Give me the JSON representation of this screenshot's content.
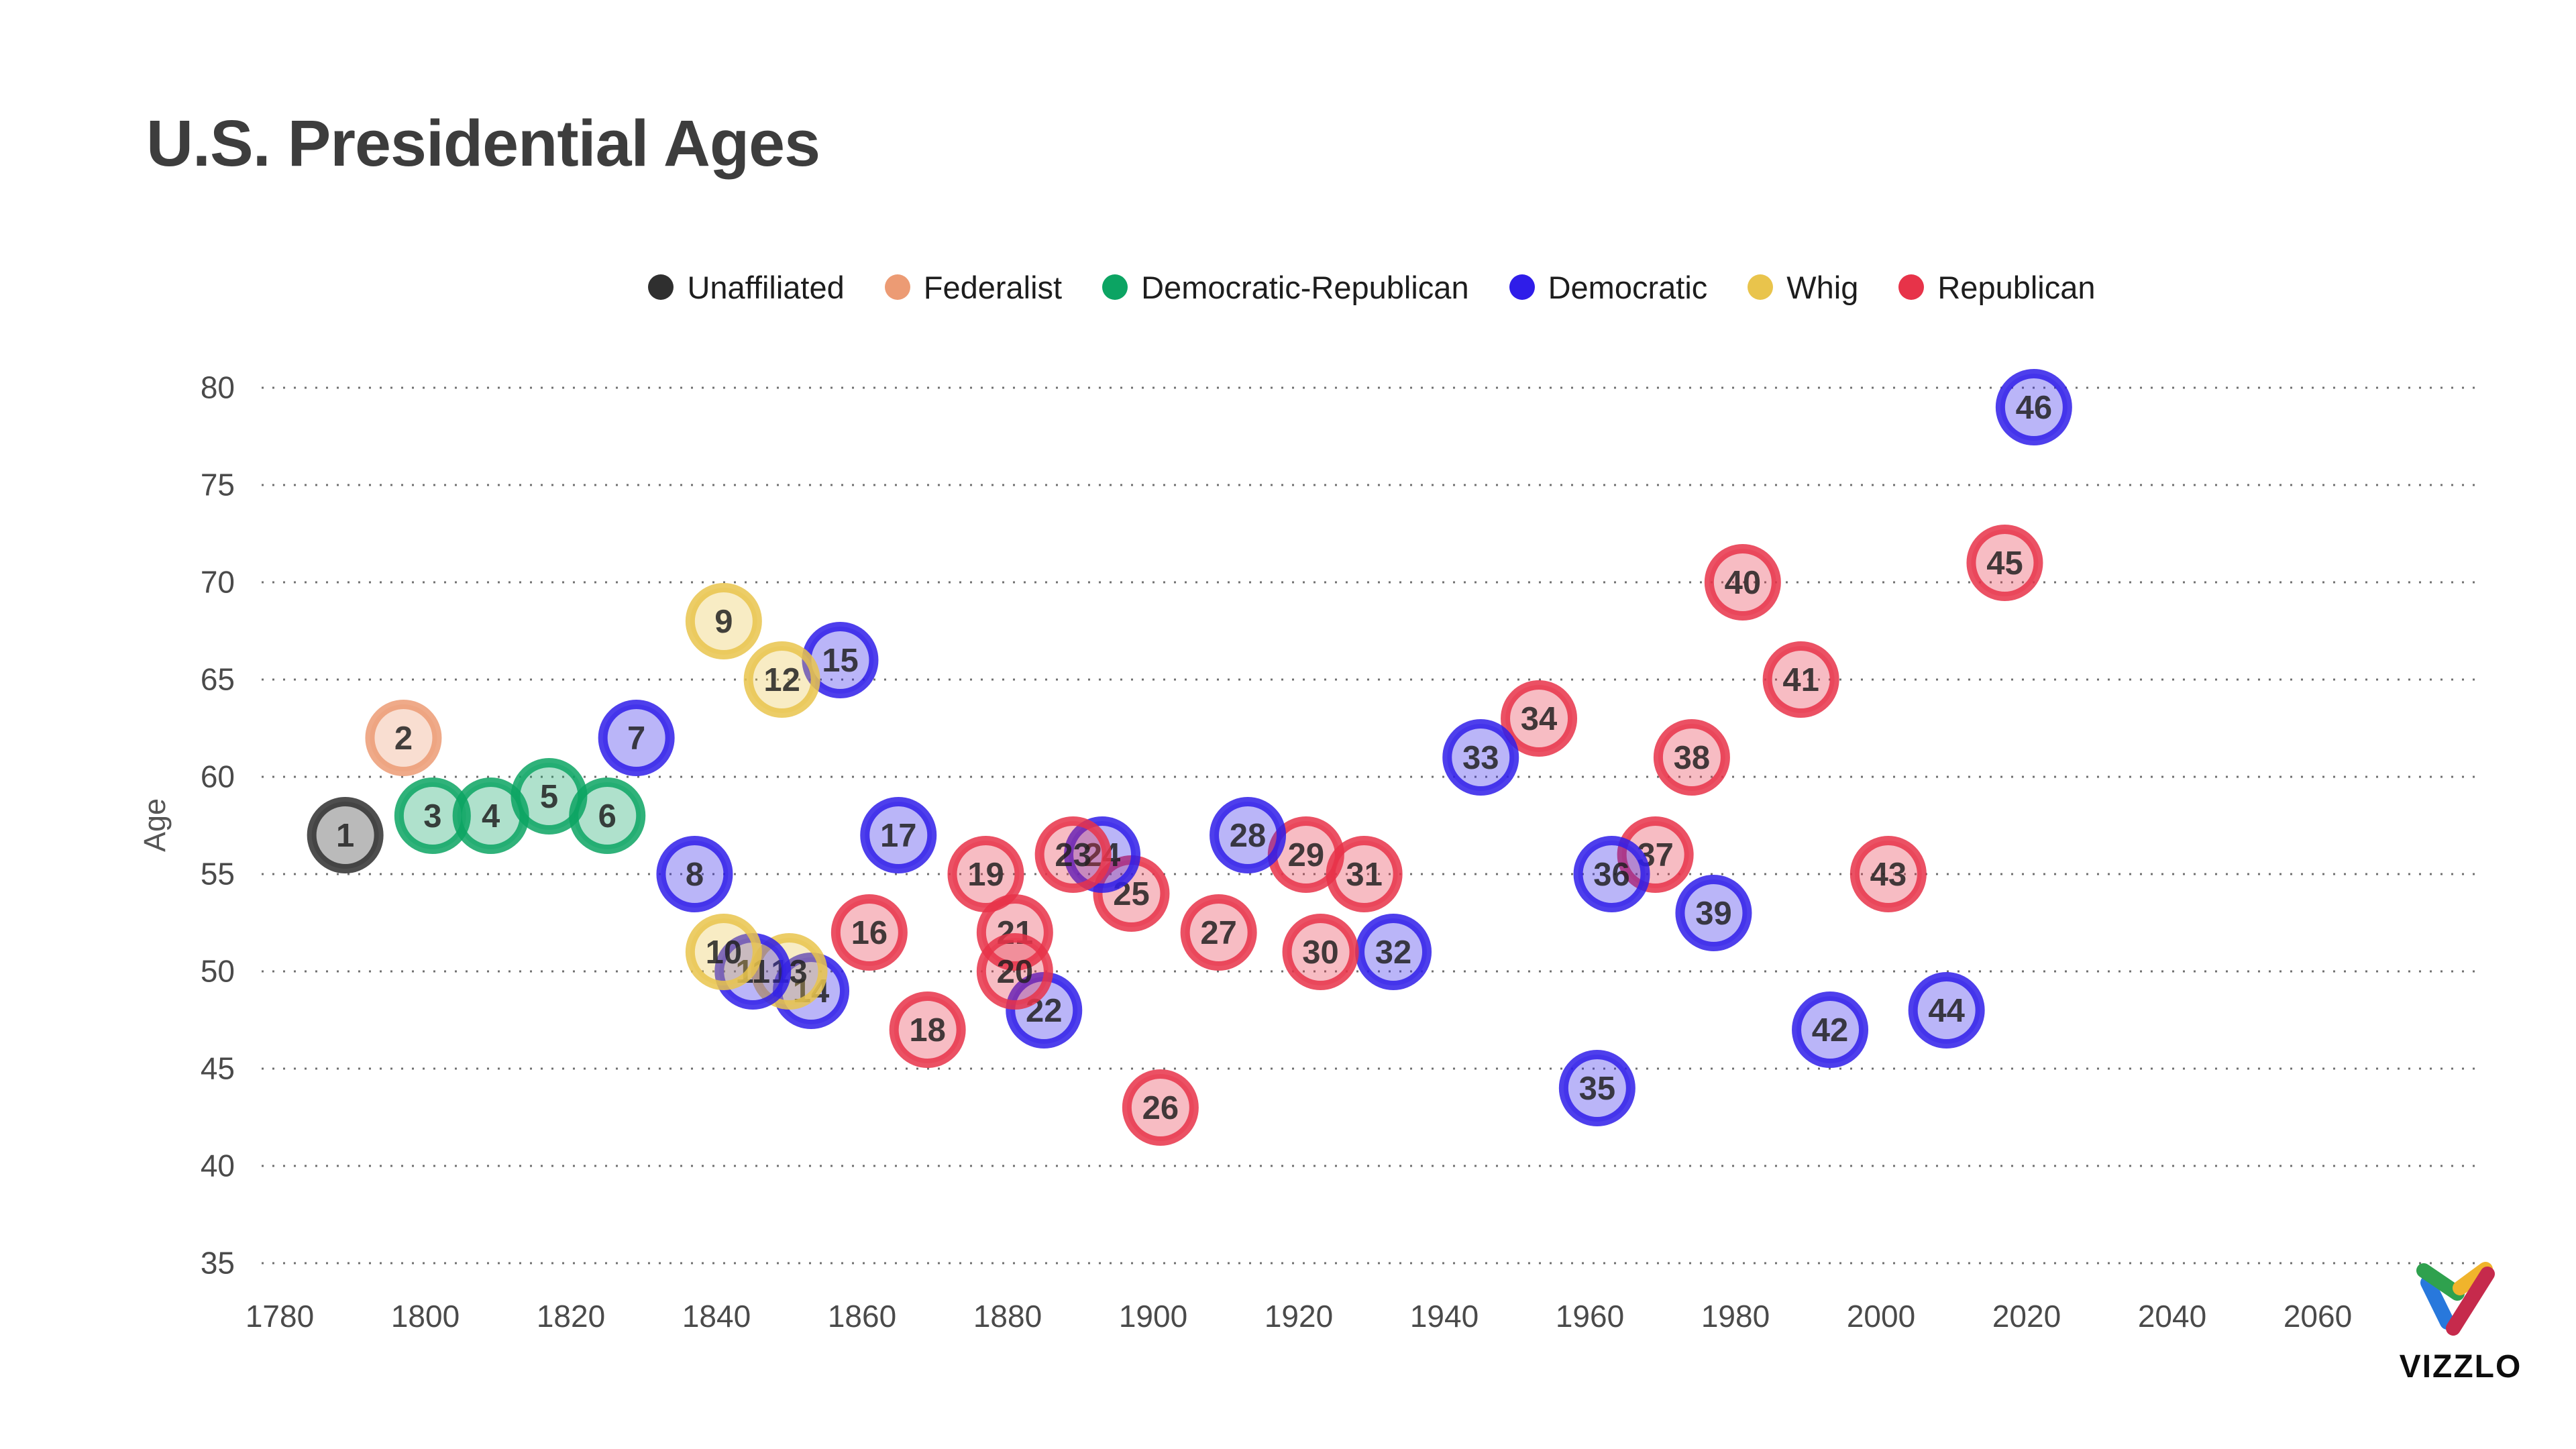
{
  "title": "U.S. Presidential Ages",
  "axes": {
    "y_title": "Age"
  },
  "legend": {
    "items": [
      {
        "label": "Unaffiliated",
        "party": "unaffiliated",
        "color": "#2f2f2f"
      },
      {
        "label": "Federalist",
        "party": "federalist",
        "color": "#ec9b74"
      },
      {
        "label": "Democratic-Republican",
        "party": "democratic-republican",
        "color": "#0ca463"
      },
      {
        "label": "Democratic",
        "party": "democratic",
        "color": "#2f1de9"
      },
      {
        "label": "Whig",
        "party": "whig",
        "color": "#e9c44c"
      },
      {
        "label": "Republican",
        "party": "republican",
        "color": "#e73349"
      }
    ]
  },
  "chart_data": {
    "type": "scatter",
    "title": "U.S. Presidential Ages",
    "xlabel": "",
    "ylabel": "Age",
    "xlim": [
      1777,
      2083
    ],
    "ylim": [
      35,
      80
    ],
    "x_ticks": [
      1780,
      1800,
      1820,
      1840,
      1860,
      1880,
      1900,
      1920,
      1940,
      1960,
      1980,
      2000,
      2020,
      2040,
      2060
    ],
    "y_ticks": [
      35,
      40,
      45,
      50,
      55,
      60,
      65,
      70,
      75,
      80
    ],
    "grid": "horizontal-dotted",
    "legend_position": "top",
    "bubble_label": "president-number",
    "points": [
      {
        "n": 1,
        "year": 1789,
        "age": 57,
        "party": "unaffiliated"
      },
      {
        "n": 2,
        "year": 1797,
        "age": 62,
        "party": "federalist"
      },
      {
        "n": 3,
        "year": 1801,
        "age": 58,
        "party": "democratic-republican"
      },
      {
        "n": 4,
        "year": 1809,
        "age": 58,
        "party": "democratic-republican"
      },
      {
        "n": 5,
        "year": 1817,
        "age": 59,
        "party": "democratic-republican"
      },
      {
        "n": 6,
        "year": 1825,
        "age": 58,
        "party": "democratic-republican"
      },
      {
        "n": 7,
        "year": 1829,
        "age": 62,
        "party": "democratic"
      },
      {
        "n": 8,
        "year": 1837,
        "age": 55,
        "party": "democratic"
      },
      {
        "n": 9,
        "year": 1841,
        "age": 68,
        "party": "whig"
      },
      {
        "n": 10,
        "year": 1841,
        "age": 51,
        "party": "whig"
      },
      {
        "n": 11,
        "year": 1845,
        "age": 50,
        "party": "democratic"
      },
      {
        "n": 12,
        "year": 1849,
        "age": 65,
        "party": "whig"
      },
      {
        "n": 13,
        "year": 1850,
        "age": 50,
        "party": "whig"
      },
      {
        "n": 14,
        "year": 1853,
        "age": 49,
        "party": "democratic"
      },
      {
        "n": 15,
        "year": 1857,
        "age": 66,
        "party": "democratic"
      },
      {
        "n": 16,
        "year": 1861,
        "age": 52,
        "party": "republican"
      },
      {
        "n": 17,
        "year": 1865,
        "age": 57,
        "party": "democratic"
      },
      {
        "n": 18,
        "year": 1869,
        "age": 47,
        "party": "republican"
      },
      {
        "n": 19,
        "year": 1877,
        "age": 55,
        "party": "republican"
      },
      {
        "n": 20,
        "year": 1881,
        "age": 50,
        "party": "republican"
      },
      {
        "n": 21,
        "year": 1881,
        "age": 52,
        "party": "republican"
      },
      {
        "n": 22,
        "year": 1885,
        "age": 48,
        "party": "democratic"
      },
      {
        "n": 23,
        "year": 1889,
        "age": 56,
        "party": "republican"
      },
      {
        "n": 24,
        "year": 1893,
        "age": 56,
        "party": "democratic"
      },
      {
        "n": 25,
        "year": 1897,
        "age": 54,
        "party": "republican"
      },
      {
        "n": 26,
        "year": 1901,
        "age": 43,
        "party": "republican"
      },
      {
        "n": 27,
        "year": 1909,
        "age": 52,
        "party": "republican"
      },
      {
        "n": 28,
        "year": 1913,
        "age": 57,
        "party": "democratic"
      },
      {
        "n": 29,
        "year": 1921,
        "age": 56,
        "party": "republican"
      },
      {
        "n": 30,
        "year": 1923,
        "age": 51,
        "party": "republican"
      },
      {
        "n": 31,
        "year": 1929,
        "age": 55,
        "party": "republican"
      },
      {
        "n": 32,
        "year": 1933,
        "age": 51,
        "party": "democratic"
      },
      {
        "n": 33,
        "year": 1945,
        "age": 61,
        "party": "democratic"
      },
      {
        "n": 34,
        "year": 1953,
        "age": 63,
        "party": "republican"
      },
      {
        "n": 35,
        "year": 1961,
        "age": 44,
        "party": "democratic"
      },
      {
        "n": 36,
        "year": 1963,
        "age": 55,
        "party": "democratic"
      },
      {
        "n": 37,
        "year": 1969,
        "age": 56,
        "party": "republican"
      },
      {
        "n": 38,
        "year": 1974,
        "age": 61,
        "party": "republican"
      },
      {
        "n": 39,
        "year": 1977,
        "age": 53,
        "party": "democratic"
      },
      {
        "n": 40,
        "year": 1981,
        "age": 70,
        "party": "republican"
      },
      {
        "n": 41,
        "year": 1989,
        "age": 65,
        "party": "republican"
      },
      {
        "n": 42,
        "year": 1993,
        "age": 47,
        "party": "democratic"
      },
      {
        "n": 43,
        "year": 2001,
        "age": 55,
        "party": "republican"
      },
      {
        "n": 44,
        "year": 2009,
        "age": 48,
        "party": "democratic"
      },
      {
        "n": 45,
        "year": 2017,
        "age": 71,
        "party": "republican"
      },
      {
        "n": 46,
        "year": 2021,
        "age": 79,
        "party": "democratic"
      }
    ]
  },
  "brand": {
    "wordmark": "VIZZLO",
    "logo_colors": {
      "green": "#2fa14e",
      "yellow": "#f0b42c",
      "blue": "#2878dc",
      "crimson": "#c62a4c"
    }
  }
}
